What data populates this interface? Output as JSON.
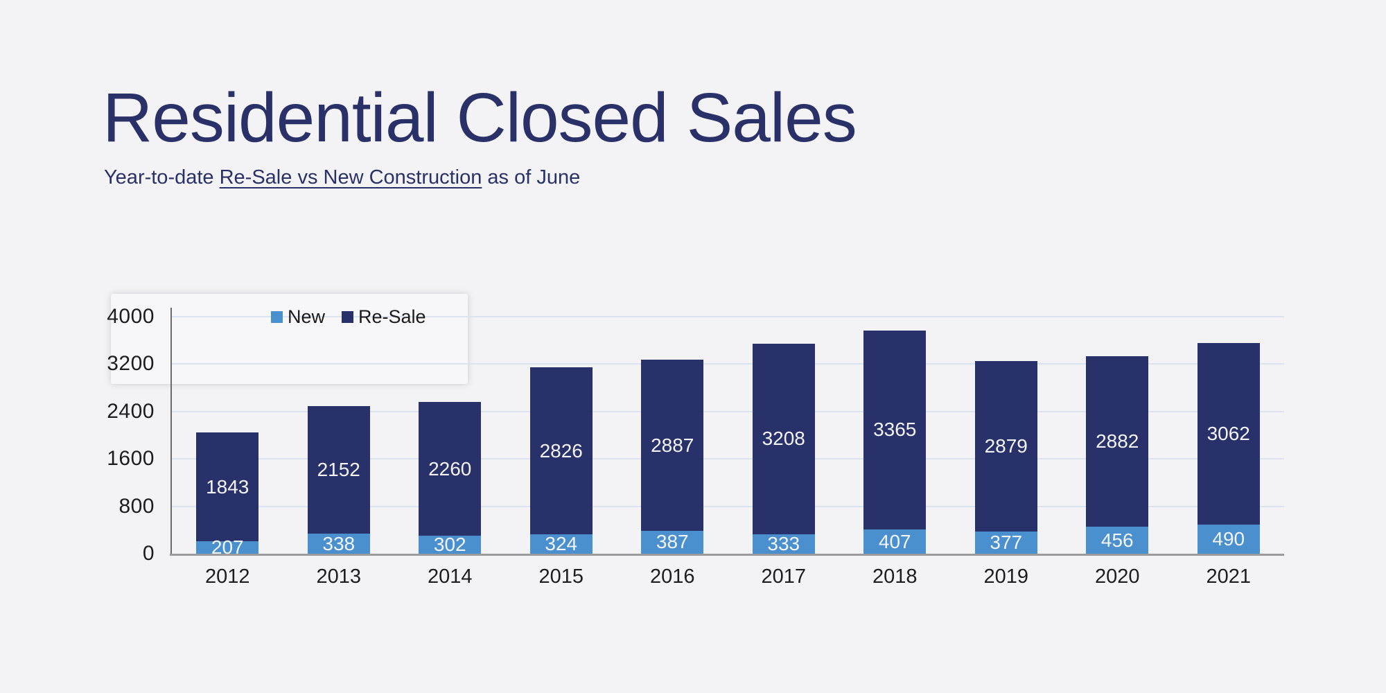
{
  "header": {
    "title": "Residential Closed Sales",
    "subtitle_prefix": "Year-to-date ",
    "subtitle_underlined": "Re-Sale vs New Construction",
    "subtitle_suffix": " as of June"
  },
  "colors": {
    "bg": "#f3f3f5",
    "title": "#2a3168",
    "navy": "#283169",
    "blue": "#4a8fce",
    "grid": "#dde3ee",
    "axis": "#9b9b9b",
    "axisv": "#6a6a6a",
    "tick": "#1d1d1f",
    "barlabel": "#f3f4f8"
  },
  "chart_data": {
    "type": "bar",
    "stacked": true,
    "title": "Residential Closed Sales",
    "subtitle": "Year-to-date Re-Sale vs New Construction as of June",
    "categories": [
      "2012",
      "2013",
      "2014",
      "2015",
      "2016",
      "2017",
      "2018",
      "2019",
      "2020",
      "2021"
    ],
    "series": [
      {
        "name": "New",
        "color": "#4a8fce",
        "values": [
          207,
          338,
          302,
          324,
          387,
          333,
          407,
          377,
          456,
          490
        ]
      },
      {
        "name": "Re-Sale",
        "color": "#283169",
        "values": [
          1843,
          2152,
          2260,
          2826,
          2887,
          3208,
          3365,
          2879,
          2882,
          3062
        ]
      }
    ],
    "totals": [
      2050,
      2490,
      2562,
      3150,
      3274,
      3541,
      3772,
      3256,
      3338,
      3552
    ],
    "xlabel": "",
    "ylabel": "",
    "ylim": [
      0,
      4000
    ],
    "yticks": [
      0,
      800,
      1600,
      2400,
      3200,
      4000
    ],
    "grid": true,
    "data_labels": true,
    "legend_position": "top-inside-left"
  }
}
